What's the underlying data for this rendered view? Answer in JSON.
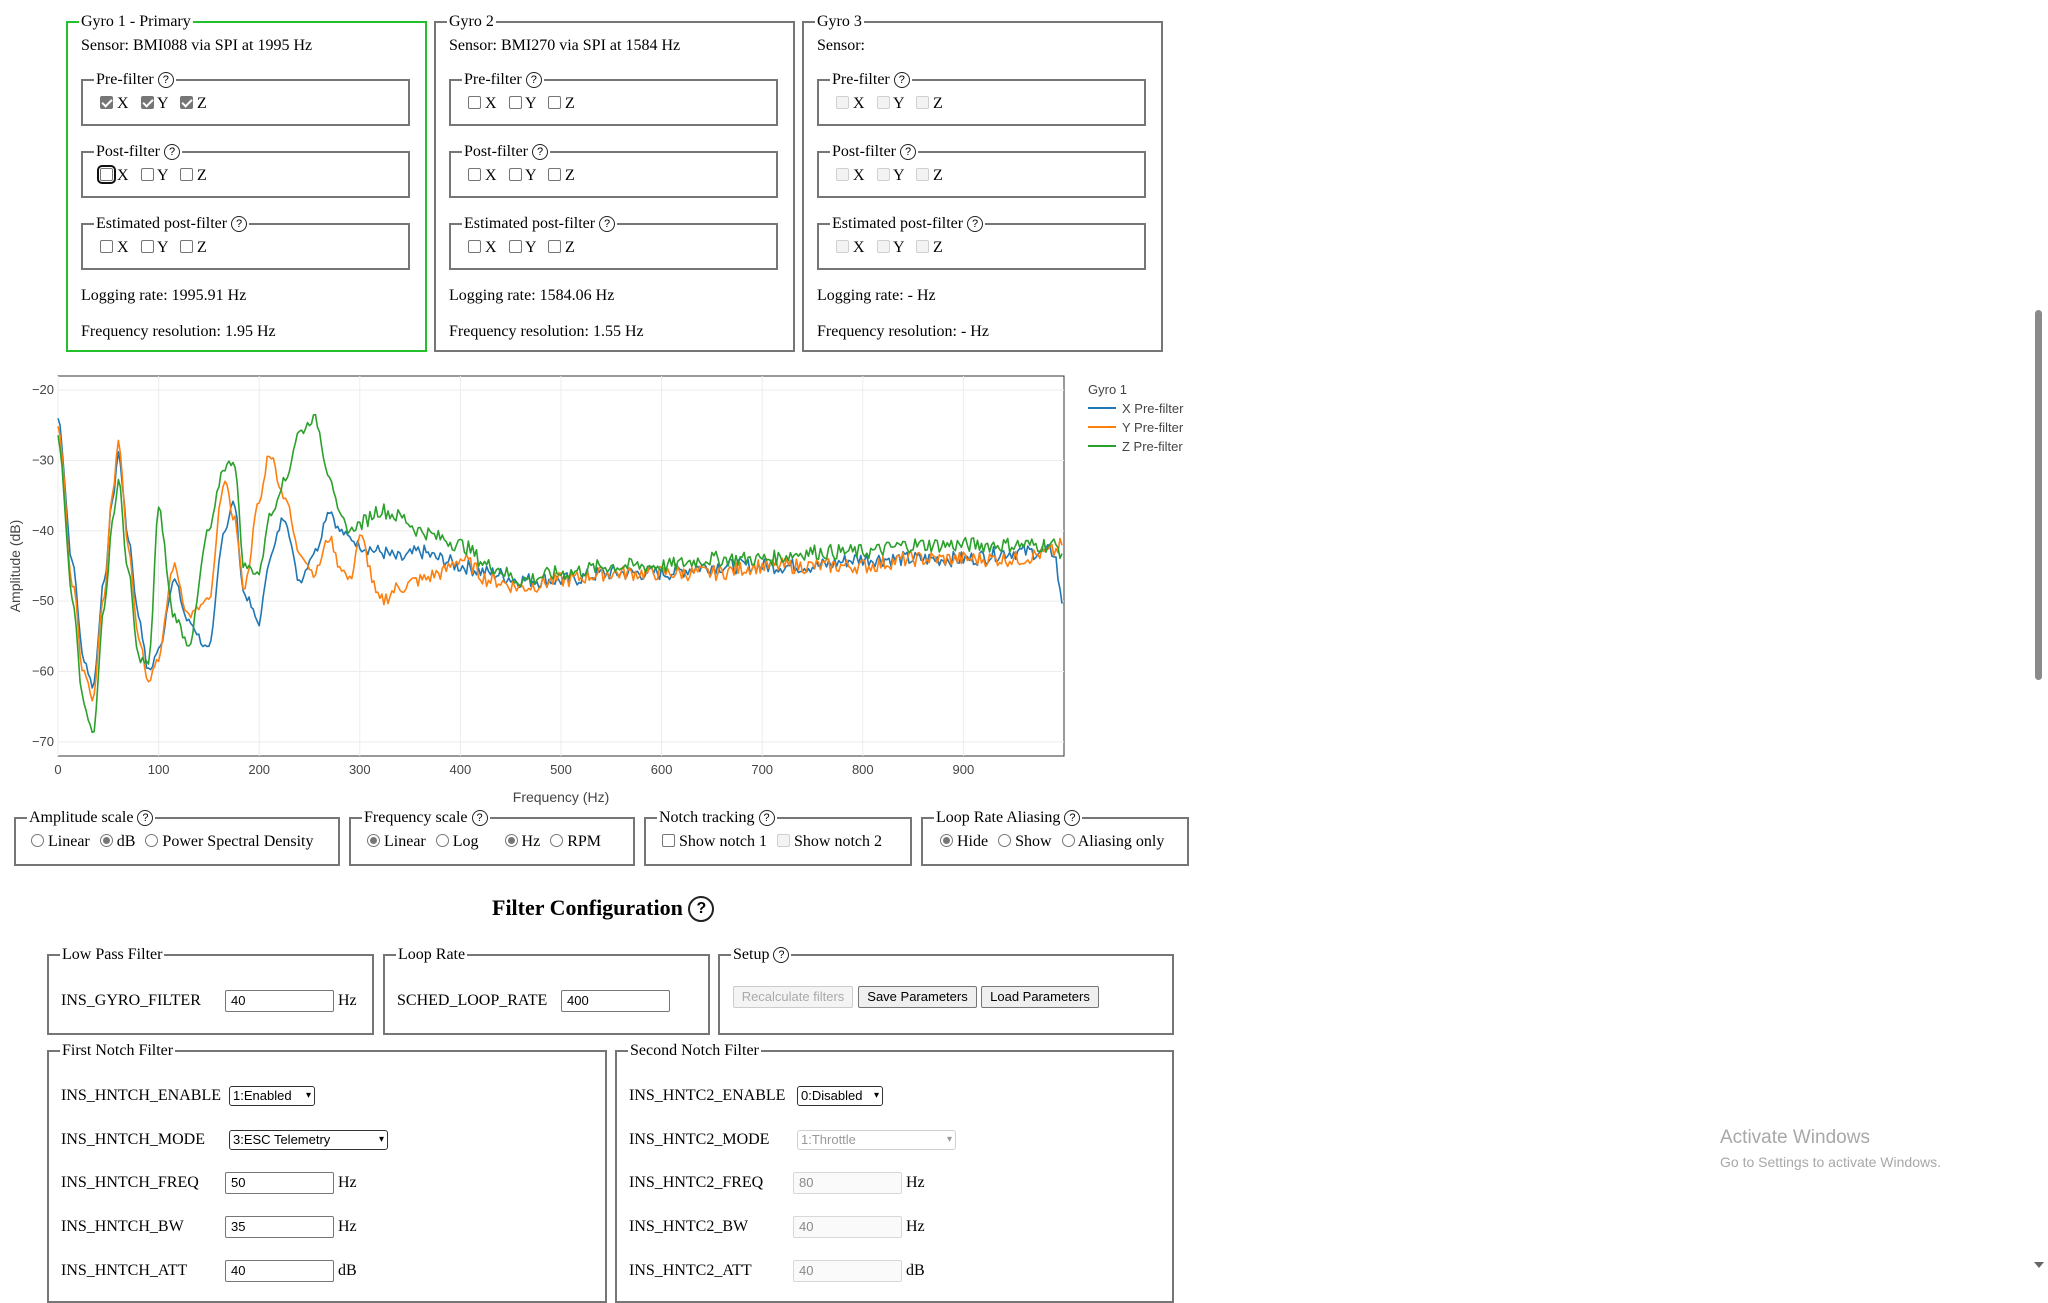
{
  "gyros": [
    {
      "title": "Gyro 1 - Primary",
      "sensor": "Sensor: BMI088 via SPI at 1995 Hz",
      "logging_rate": "Logging rate: 1995.91 Hz",
      "freq_resolution": "Frequency resolution: 1.95 Hz"
    },
    {
      "title": "Gyro 2",
      "sensor": "Sensor: BMI270 via SPI at 1584 Hz",
      "logging_rate": "Logging rate: 1584.06 Hz",
      "freq_resolution": "Frequency resolution: 1.55 Hz"
    },
    {
      "title": "Gyro 3",
      "sensor": "Sensor:",
      "logging_rate": "Logging rate: - Hz",
      "freq_resolution": "Frequency resolution: - Hz"
    }
  ],
  "filter_groups": {
    "pre": "Pre-filter",
    "post": "Post-filter",
    "est": "Estimated post-filter",
    "help": "?"
  },
  "axes": {
    "x": "X",
    "y": "Y",
    "z": "Z"
  },
  "chart_data": {
    "type": "line",
    "legend_title": "Gyro 1",
    "legend_position": "top-right",
    "xlabel": "Frequency (Hz)",
    "ylabel": "Amplitude (dB)",
    "xlim": [
      0,
      1000
    ],
    "ylim": [
      -72,
      -18
    ],
    "x_ticks": [
      "0",
      "100",
      "200",
      "300",
      "400",
      "500",
      "600",
      "700",
      "800",
      "900"
    ],
    "y_ticks": [
      "−20",
      "−30",
      "−40",
      "−50",
      "−60",
      "−70"
    ],
    "grid": true,
    "colors": {
      "x": "#1f77b4",
      "y": "#ff7f0e",
      "z": "#2ca02c"
    },
    "x": [
      0,
      15,
      25,
      35,
      45,
      55,
      60,
      70,
      80,
      90,
      100,
      115,
      130,
      150,
      165,
      175,
      185,
      200,
      210,
      225,
      240,
      255,
      270,
      280,
      290,
      300,
      320,
      340,
      360,
      380,
      400,
      430,
      460,
      500,
      550,
      600,
      650,
      700,
      750,
      800,
      850,
      900,
      950,
      990,
      998
    ],
    "series": [
      {
        "name": "X Pre-filter",
        "values": [
          -24,
          -45,
          -58,
          -62,
          -48,
          -35,
          -29,
          -41,
          -52,
          -60,
          -57,
          -47,
          -53,
          -57,
          -40,
          -36,
          -49,
          -53,
          -44,
          -38,
          -47,
          -43,
          -37,
          -40,
          -41,
          -42,
          -43,
          -44,
          -43,
          -44,
          -45,
          -46,
          -47,
          -47,
          -46,
          -46,
          -45,
          -45,
          -45,
          -44,
          -44,
          -44,
          -43,
          -43,
          -50
        ]
      },
      {
        "name": "Y Pre-filter",
        "values": [
          -25,
          -48,
          -60,
          -64,
          -50,
          -34,
          -27,
          -42,
          -55,
          -61,
          -58,
          -45,
          -52,
          -50,
          -33,
          -38,
          -48,
          -36,
          -29,
          -35,
          -43,
          -46,
          -41,
          -45,
          -47,
          -41,
          -50,
          -48,
          -47,
          -46,
          -44,
          -47,
          -48,
          -47,
          -46,
          -46,
          -46,
          -45,
          -45,
          -45,
          -44,
          -44,
          -44,
          -43,
          -42
        ]
      },
      {
        "name": "Z Pre-filter",
        "values": [
          -27,
          -50,
          -64,
          -69,
          -52,
          -38,
          -33,
          -46,
          -58,
          -59,
          -37,
          -52,
          -56,
          -40,
          -31,
          -30,
          -45,
          -46,
          -38,
          -33,
          -26,
          -24,
          -32,
          -38,
          -40,
          -39,
          -37,
          -38,
          -40,
          -41,
          -42,
          -45,
          -47,
          -46,
          -45,
          -45,
          -44,
          -44,
          -43,
          -43,
          -42,
          -42,
          -42,
          -42,
          -43
        ]
      }
    ]
  },
  "controls": {
    "amplitude": {
      "title": "Amplitude scale",
      "options": [
        "Linear",
        "dB",
        "Power Spectral Density"
      ]
    },
    "frequency": {
      "title": "Frequency scale",
      "options": [
        "Linear",
        "Log",
        "Hz",
        "RPM"
      ]
    },
    "notch": {
      "title": "Notch tracking",
      "options": [
        "Show notch 1",
        "Show notch 2"
      ]
    },
    "aliasing": {
      "title": "Loop Rate Aliasing",
      "options": [
        "Hide",
        "Show",
        "Aliasing only"
      ]
    }
  },
  "filter_config": {
    "heading": "Filter Configuration",
    "low_pass": {
      "title": "Low Pass Filter",
      "param": "INS_GYRO_FILTER",
      "value": "40",
      "unit": "Hz"
    },
    "loop_rate": {
      "title": "Loop Rate",
      "param": "SCHED_LOOP_RATE",
      "value": "400"
    },
    "setup": {
      "title": "Setup",
      "recalculate": "Recalculate filters",
      "save": "Save Parameters",
      "load": "Load Parameters"
    },
    "first_notch": {
      "title": "First Notch Filter",
      "enable": {
        "label": "INS_HNTCH_ENABLE",
        "value": "1:Enabled"
      },
      "mode": {
        "label": "INS_HNTCH_MODE",
        "value": "3:ESC Telemetry"
      },
      "freq": {
        "label": "INS_HNTCH_FREQ",
        "value": "50",
        "unit": "Hz"
      },
      "bw": {
        "label": "INS_HNTCH_BW",
        "value": "35",
        "unit": "Hz"
      },
      "att": {
        "label": "INS_HNTCH_ATT",
        "value": "40",
        "unit": "dB"
      }
    },
    "second_notch": {
      "title": "Second Notch Filter",
      "enable": {
        "label": "INS_HNTC2_ENABLE",
        "value": "0:Disabled"
      },
      "mode": {
        "label": "INS_HNTC2_MODE",
        "value": "1:Throttle"
      },
      "freq": {
        "label": "INS_HNTC2_FREQ",
        "value": "80",
        "unit": "Hz"
      },
      "bw": {
        "label": "INS_HNTC2_BW",
        "value": "40",
        "unit": "Hz"
      },
      "att": {
        "label": "INS_HNTC2_ATT",
        "value": "40",
        "unit": "dB"
      }
    }
  },
  "watermark": {
    "title": "Activate Windows",
    "subtitle": "Go to Settings to activate Windows."
  }
}
